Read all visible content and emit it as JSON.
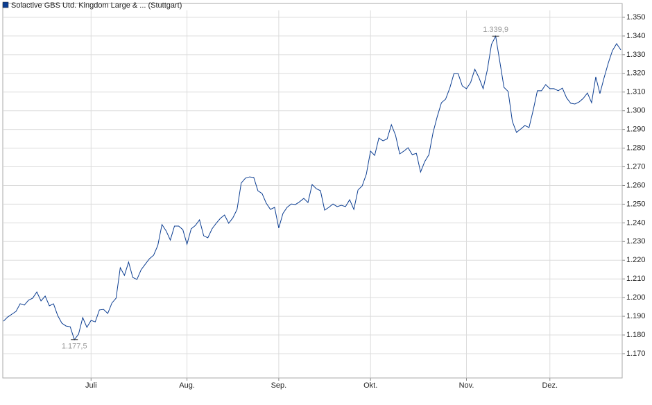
{
  "chart_data": {
    "type": "line",
    "categories": [
      null,
      null,
      null,
      null,
      null,
      null,
      null,
      null,
      null,
      null,
      null,
      null,
      null,
      null,
      null,
      null,
      null,
      null,
      null,
      null,
      null,
      "Juli",
      null,
      null,
      null,
      null,
      null,
      null,
      null,
      null,
      null,
      null,
      null,
      null,
      null,
      null,
      null,
      null,
      null,
      null,
      null,
      null,
      null,
      null,
      "Aug.",
      null,
      null,
      null,
      null,
      null,
      null,
      null,
      null,
      null,
      null,
      null,
      null,
      null,
      null,
      null,
      null,
      null,
      null,
      null,
      null,
      null,
      "Sep.",
      null,
      null,
      null,
      null,
      null,
      null,
      null,
      null,
      null,
      null,
      null,
      null,
      null,
      null,
      null,
      null,
      null,
      null,
      null,
      null,
      null,
      "Okt.",
      null,
      null,
      null,
      null,
      null,
      null,
      null,
      null,
      null,
      null,
      null,
      null,
      null,
      null,
      null,
      null,
      null,
      null,
      null,
      null,
      null,
      null,
      "Nov.",
      null,
      null,
      null,
      null,
      null,
      null,
      null,
      null,
      null,
      null,
      null,
      null,
      null,
      null,
      null,
      null,
      null,
      null,
      null,
      "Dez.",
      null,
      null,
      null,
      null,
      null,
      null,
      null,
      null,
      null,
      null,
      null,
      null,
      null,
      null,
      null,
      null,
      null
    ],
    "series": [
      {
        "name": "Solactive GBS Utd. Kingdom Large & ... (Stuttgart)",
        "color": "#0b3d91",
        "values": [
          1187.4,
          1189.6,
          1191.1,
          1192.6,
          1196.7,
          1196.0,
          1198.6,
          1199.7,
          1203.0,
          1198.2,
          1200.8,
          1195.6,
          1196.7,
          1190.4,
          1186.3,
          1184.8,
          1184.4,
          1177.5,
          1180.4,
          1189.3,
          1184.1,
          1187.8,
          1187.0,
          1193.4,
          1193.7,
          1191.5,
          1197.1,
          1199.7,
          1216.0,
          1211.9,
          1219.0,
          1210.8,
          1209.7,
          1214.9,
          1217.9,
          1220.8,
          1222.7,
          1227.9,
          1239.1,
          1235.7,
          1230.8,
          1238.3,
          1238.3,
          1236.4,
          1228.6,
          1236.8,
          1238.6,
          1241.6,
          1233.1,
          1232.0,
          1236.8,
          1239.8,
          1242.4,
          1244.2,
          1239.8,
          1242.7,
          1247.2,
          1261.3,
          1263.9,
          1264.6,
          1264.3,
          1257.2,
          1255.7,
          1250.5,
          1247.2,
          1248.3,
          1237.2,
          1245.0,
          1248.3,
          1250.1,
          1249.8,
          1251.3,
          1253.1,
          1250.9,
          1260.5,
          1258.3,
          1257.2,
          1246.8,
          1248.3,
          1250.1,
          1248.7,
          1249.4,
          1248.7,
          1252.4,
          1247.2,
          1257.6,
          1259.8,
          1266.1,
          1278.4,
          1276.1,
          1285.4,
          1283.9,
          1285.0,
          1292.5,
          1286.9,
          1276.9,
          1278.4,
          1280.2,
          1276.5,
          1277.2,
          1267.2,
          1272.8,
          1276.5,
          1288.4,
          1296.9,
          1304.3,
          1306.2,
          1312.1,
          1319.9,
          1319.9,
          1313.3,
          1311.8,
          1315.1,
          1322.2,
          1317.7,
          1311.8,
          1321.8,
          1335.5,
          1339.9,
          1326.2,
          1312.5,
          1310.3,
          1294.3,
          1288.4,
          1290.2,
          1292.1,
          1291.0,
          1300.3,
          1310.7,
          1310.7,
          1314.0,
          1311.8,
          1311.8,
          1310.7,
          1312.1,
          1306.9,
          1304.0,
          1303.6,
          1304.7,
          1306.6,
          1309.5,
          1304.3,
          1318.1,
          1309.2,
          1317.7,
          1325.5,
          1332.2,
          1335.9,
          1332.6
        ],
        "value_labels": [
          null,
          null,
          null,
          null,
          null,
          null,
          null,
          null,
          null,
          null,
          null,
          null,
          null,
          null,
          null,
          null,
          null,
          "1.177,5",
          null,
          null,
          null,
          null,
          null,
          null,
          null,
          null,
          null,
          null,
          null,
          null,
          null,
          null,
          null,
          null,
          null,
          null,
          null,
          null,
          null,
          null,
          null,
          null,
          null,
          null,
          null,
          null,
          null,
          null,
          null,
          null,
          null,
          null,
          null,
          null,
          null,
          null,
          null,
          null,
          null,
          null,
          null,
          null,
          null,
          null,
          null,
          null,
          null,
          null,
          null,
          null,
          null,
          null,
          null,
          null,
          null,
          null,
          null,
          null,
          null,
          null,
          null,
          null,
          null,
          null,
          null,
          null,
          null,
          null,
          null,
          null,
          null,
          null,
          null,
          null,
          null,
          null,
          null,
          null,
          null,
          null,
          null,
          null,
          null,
          null,
          null,
          null,
          null,
          null,
          null,
          null,
          null,
          null,
          null,
          null,
          null,
          null,
          null,
          null,
          "1.339,9",
          null,
          null,
          null,
          null,
          null,
          null,
          null,
          null,
          null,
          null,
          null,
          null,
          null,
          null,
          null,
          null,
          null,
          null,
          null,
          null,
          null,
          null,
          null,
          null,
          null,
          null,
          null,
          null,
          null,
          null
        ]
      }
    ],
    "ylim": [
      1157,
      1353.7
    ],
    "yticks": [
      {
        "value": 1170,
        "label": "1.170"
      },
      {
        "value": 1180,
        "label": "1.180"
      },
      {
        "value": 1190,
        "label": "1.190"
      },
      {
        "value": 1200,
        "label": "1.200"
      },
      {
        "value": 1210,
        "label": "1.210"
      },
      {
        "value": 1220,
        "label": "1.220"
      },
      {
        "value": 1230,
        "label": "1.230"
      },
      {
        "value": 1240,
        "label": "1.240"
      },
      {
        "value": 1250,
        "label": "1.250"
      },
      {
        "value": 1260,
        "label": "1.260"
      },
      {
        "value": 1270,
        "label": "1.270"
      },
      {
        "value": 1280,
        "label": "1.280"
      },
      {
        "value": 1290,
        "label": "1.290"
      },
      {
        "value": 1300,
        "label": "1.300"
      },
      {
        "value": 1310,
        "label": "1.310"
      },
      {
        "value": 1320,
        "label": "1.320"
      },
      {
        "value": 1330,
        "label": "1.330"
      },
      {
        "value": 1340,
        "label": "1.340"
      },
      {
        "value": 1350,
        "label": "1.350"
      }
    ],
    "grid": true,
    "legend": "top-left"
  }
}
